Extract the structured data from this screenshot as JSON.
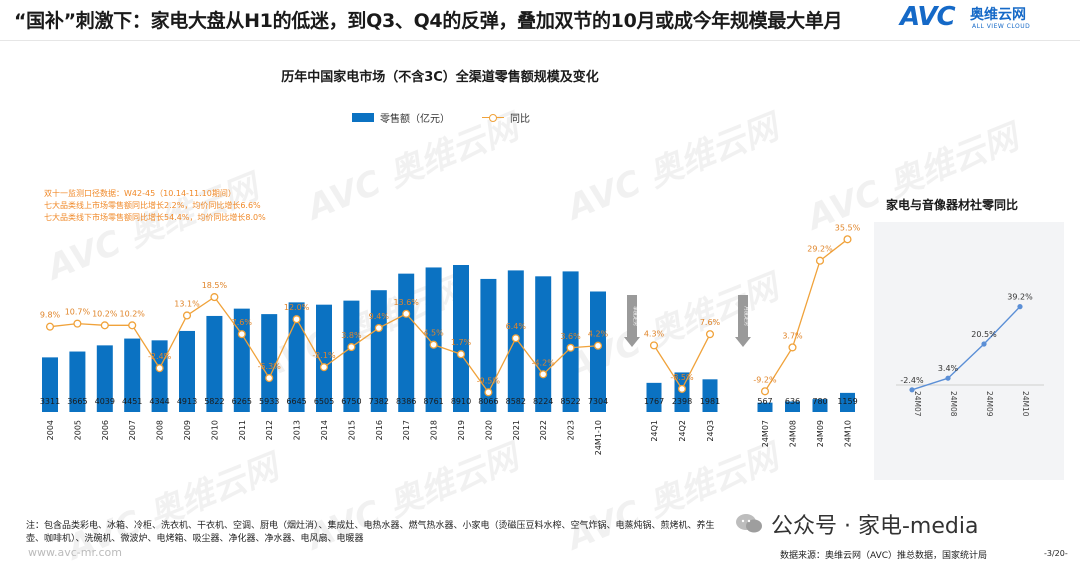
{
  "header": {
    "title": "“国补”刺激下：家电大盘从H1的低迷，到Q3、Q4的反弹，叠加双节的10月或成今年规模最大单月",
    "logo_text": "AVC",
    "logo_cn": "奥维云网",
    "logo_en": "ALL VIEW CLOUD"
  },
  "watermark": "AVC 奥维云网",
  "colors": {
    "bar": "#0b72c2",
    "line": "#f0a23a",
    "side_line": "#5b8fd6",
    "arrow": "#9a9a9a"
  },
  "annotation": {
    "lines": [
      "双十一监测口径数据：W42-45（10.14-11.10期间）",
      "七大品类线上市场零售额同比增长2.2%，均价同比增长6.6%",
      "七大品类线下市场零售额同比增长54.4%，均价同比增长8.0%"
    ]
  },
  "chart_data": [
    {
      "type": "bar+line",
      "title": "历年中国家电市场（不含3C）全渠道零售额规模及变化",
      "legend": {
        "bar": "零售额（亿元）",
        "line": "同比"
      },
      "groups": [
        {
          "name": "annual",
          "categories": [
            "2004",
            "2005",
            "2006",
            "2007",
            "2008",
            "2009",
            "2010",
            "2011",
            "2012",
            "2013",
            "2014",
            "2015",
            "2016",
            "2017",
            "2018",
            "2019",
            "2020",
            "2021",
            "2022",
            "2023",
            "24M1-10"
          ],
          "values": [
            3311,
            3665,
            4039,
            4451,
            4344,
            4913,
            5822,
            6265,
            5933,
            6645,
            6505,
            6750,
            7382,
            8386,
            8761,
            8910,
            8066,
            8582,
            8224,
            8522,
            7304
          ],
          "yoy": [
            9.8,
            10.7,
            10.2,
            10.2,
            -2.4,
            13.1,
            18.5,
            7.6,
            -5.3,
            12.0,
            -2.1,
            3.8,
            9.4,
            13.6,
            4.5,
            1.7,
            -9.5,
            6.4,
            -4.2,
            3.6,
            4.2
          ],
          "yoy_labels": [
            "9.8%",
            "10.7%",
            "10.2%",
            "10.2%",
            "-2.4%",
            "13.1%",
            "18.5%",
            "7.6%",
            "-5.3%",
            "12.0%",
            "-2.1%",
            "3.8%",
            "9.4%",
            "13.6%",
            "4.5%",
            "1.7%",
            "-9.5%",
            "6.4%",
            "-4.2%",
            "3.6%",
            "4.2%"
          ]
        },
        {
          "name": "quarterly",
          "side_label": "季度走势",
          "categories": [
            "24Q1",
            "24Q2",
            "24Q3"
          ],
          "values": [
            1767,
            2398,
            1981
          ],
          "yoy": [
            4.3,
            -8.5,
            7.6
          ],
          "yoy_labels": [
            "4.3%",
            "-8.5%",
            "7.6%"
          ]
        },
        {
          "name": "monthly",
          "side_label": "月度走势",
          "categories": [
            "24M07",
            "24M08",
            "24M09",
            "24M10"
          ],
          "values": [
            567,
            636,
            780,
            1159
          ],
          "yoy": [
            -9.2,
            3.7,
            29.2,
            35.5
          ],
          "yoy_labels": [
            "-9.2%",
            "3.7%",
            "29.2%",
            "35.5%"
          ]
        }
      ]
    },
    {
      "type": "line",
      "title": "家电与音像器材社零同比",
      "categories": [
        "24M07",
        "24M08",
        "24M09",
        "24M10"
      ],
      "values": [
        -2.4,
        3.4,
        20.5,
        39.2
      ],
      "labels": [
        "-2.4%",
        "3.4%",
        "20.5%",
        "39.2%"
      ]
    }
  ],
  "footer": {
    "note": "注：包含品类彩电、冰箱、冷柜、洗衣机、干衣机、空调、厨电（烟灶消）、集成灶、电热水器、燃气热水器、小家电（烫磁压豆料水榨、空气炸锅、电蒸炖锅、煎烤机、养生壶、咖啡机）、洗碗机、微波炉、电烤箱、吸尘器、净化器、净水器、电风扇、电暖器",
    "url": "www.avc-mr.com",
    "wechat": "公众号 · 家电-media",
    "source": "数据来源：奥维云网（AVC）推总数据，国家统计局",
    "page": "-3/20-"
  }
}
